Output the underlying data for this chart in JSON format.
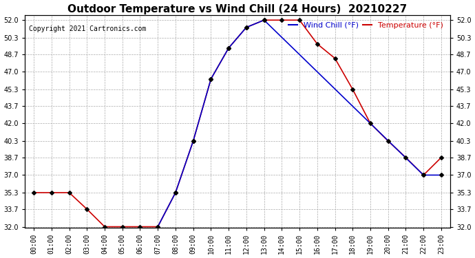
{
  "title": "Outdoor Temperature vs Wind Chill (24 Hours)  20210227",
  "copyright": "Copyright 2021 Cartronics.com",
  "legend_wind_chill": "Wind Chill (°F)",
  "legend_temperature": "Temperature (°F)",
  "x_labels": [
    "00:00",
    "01:00",
    "02:00",
    "03:00",
    "04:00",
    "05:00",
    "06:00",
    "07:00",
    "08:00",
    "09:00",
    "10:00",
    "11:00",
    "12:00",
    "13:00",
    "14:00",
    "15:00",
    "16:00",
    "17:00",
    "18:00",
    "19:00",
    "20:00",
    "21:00",
    "22:00",
    "23:00"
  ],
  "temperature": [
    35.3,
    35.3,
    35.3,
    33.7,
    32.0,
    32.0,
    32.0,
    32.0,
    35.3,
    40.3,
    46.3,
    49.3,
    51.3,
    52.0,
    52.0,
    52.0,
    49.7,
    48.3,
    45.3,
    42.0,
    40.3,
    38.7,
    37.0,
    38.7
  ],
  "wind_chill": [
    null,
    null,
    null,
    null,
    null,
    null,
    null,
    32.0,
    35.3,
    40.3,
    46.3,
    49.3,
    51.3,
    52.0,
    null,
    null,
    null,
    null,
    null,
    null,
    null,
    null,
    37.0,
    37.0
  ],
  "ylim": [
    32.0,
    52.0
  ],
  "y_ticks": [
    32.0,
    33.7,
    35.3,
    37.0,
    38.7,
    40.3,
    42.0,
    43.7,
    45.3,
    47.0,
    48.7,
    50.3,
    52.0
  ],
  "temp_color": "#cc0000",
  "wind_chill_color": "#0000cc",
  "marker": "D",
  "marker_color": "black",
  "marker_size": 3,
  "grid_color": "#aaaaaa",
  "background_color": "#ffffff",
  "title_fontsize": 11,
  "legend_fontsize": 8,
  "tick_fontsize": 7,
  "copyright_fontsize": 7,
  "figwidth": 6.9,
  "figheight": 3.75,
  "dpi": 100
}
